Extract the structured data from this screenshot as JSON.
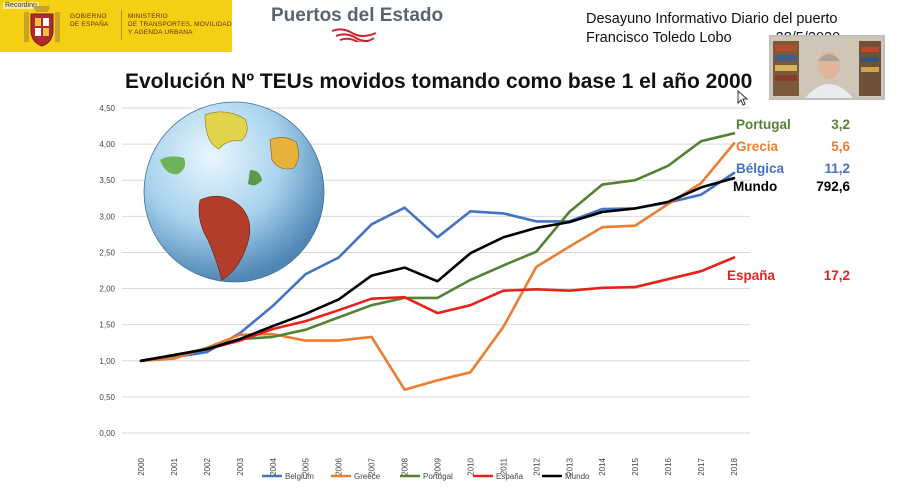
{
  "header": {
    "recording_label": "Recording",
    "gov_label_line1": "GOBIERNO",
    "gov_label_line2": "DE ESPAÑA",
    "ministry_line1": "MINISTERIO",
    "ministry_line2": "DE TRANSPORTES, MOVILIDAD",
    "ministry_line3": "Y AGENDA URBANA",
    "brand": "Puertos del Estado",
    "event_title": "Desayuno Informativo Diario del puerto",
    "speaker_line": "Francisco Toledo Lobo",
    "date_partial": "28/5/2020"
  },
  "colors": {
    "gov_yellow": "#f6cf14",
    "brand_red": "#c8242f",
    "belgium": "#4472c4",
    "greece": "#ed7d31",
    "portugal": "#548235",
    "espana": "#e8221b",
    "mundo": "#000000"
  },
  "chart_data": {
    "type": "line",
    "title": "Evolución Nº TEUs movidos tomando como base 1 el año 2000",
    "x": [
      "2000",
      "2001",
      "2002",
      "2003",
      "2004",
      "2005",
      "2006",
      "2007",
      "2008",
      "2009",
      "2010",
      "2011",
      "2012",
      "2013",
      "2014",
      "2015",
      "2016",
      "2017",
      "2018"
    ],
    "ylim": [
      0,
      4.5
    ],
    "yticks": [
      "0,00",
      "0,50",
      "1,00",
      "1,50",
      "2,00",
      "2,50",
      "3,00",
      "3,50",
      "4,00",
      "4,50"
    ],
    "grid": true,
    "legend_position": "bottom",
    "series": [
      {
        "name": "Belgium",
        "color": "#4472c4",
        "values": [
          1.0,
          1.05,
          1.12,
          1.38,
          1.76,
          2.2,
          2.43,
          2.89,
          3.12,
          2.71,
          3.07,
          3.04,
          2.93,
          2.93,
          3.1,
          3.11,
          3.19,
          3.3,
          3.6
        ]
      },
      {
        "name": "Greece",
        "color": "#ed7d31",
        "values": [
          1.0,
          1.03,
          1.18,
          1.36,
          1.37,
          1.28,
          1.28,
          1.33,
          0.6,
          0.73,
          0.84,
          1.47,
          2.3,
          2.58,
          2.85,
          2.87,
          3.17,
          3.46,
          4.01
        ]
      },
      {
        "name": "Portugal",
        "color": "#548235",
        "values": [
          1.0,
          1.07,
          1.17,
          1.3,
          1.33,
          1.43,
          1.6,
          1.77,
          1.87,
          1.87,
          2.12,
          2.32,
          2.51,
          3.06,
          3.44,
          3.5,
          3.7,
          4.04,
          4.15
        ]
      },
      {
        "name": "España",
        "color": "#e8221b",
        "values": [
          1.0,
          1.08,
          1.16,
          1.28,
          1.44,
          1.55,
          1.7,
          1.86,
          1.88,
          1.66,
          1.77,
          1.97,
          1.99,
          1.97,
          2.01,
          2.02,
          2.13,
          2.24,
          2.43
        ]
      },
      {
        "name": "Mundo",
        "color": "#000000",
        "values": [
          1.0,
          1.08,
          1.16,
          1.3,
          1.48,
          1.65,
          1.85,
          2.18,
          2.29,
          2.1,
          2.49,
          2.71,
          2.84,
          2.92,
          3.06,
          3.11,
          3.2,
          3.4,
          3.53
        ]
      }
    ],
    "annotations": [
      {
        "label": "Portugal",
        "value": "3,2",
        "color": "#548235"
      },
      {
        "label": "Grecia",
        "value": "5,6",
        "color": "#ed7d31"
      },
      {
        "label": "Bélgica",
        "value": "11,2",
        "color": "#4472c4"
      },
      {
        "label": "Mundo",
        "value": "792,6",
        "color": "#000000"
      },
      {
        "label": "España",
        "value": "17,2",
        "color": "#e8221b"
      }
    ]
  }
}
